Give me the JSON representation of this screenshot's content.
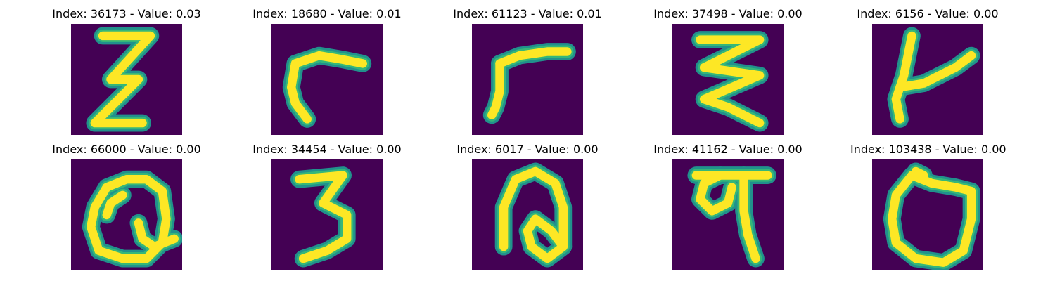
{
  "figure": {
    "background_color": "#440154",
    "foreground_color": "#fde725",
    "colormap": "viridis"
  },
  "panels": [
    {
      "title": "Index: 36173 - Value: 0.03",
      "glyph": "handwritten-three-like-character",
      "strokes": [
        [
          [
            8,
            3
          ],
          [
            20,
            3
          ],
          [
            10,
            14
          ],
          [
            17,
            14
          ],
          [
            6,
            25
          ],
          [
            18,
            25
          ]
        ]
      ]
    },
    {
      "title": "Index: 18680 - Value: 0.01",
      "glyph": "handwritten-c-hook-character",
      "strokes": [
        [
          [
            23,
            10
          ],
          [
            18,
            9
          ],
          [
            12,
            8
          ],
          [
            6,
            10
          ],
          [
            5,
            16
          ],
          [
            6,
            20
          ],
          [
            9,
            24
          ]
        ]
      ]
    },
    {
      "title": "Index: 61123 - Value: 0.01",
      "glyph": "handwritten-r-like-character",
      "strokes": [
        [
          [
            7,
            10
          ],
          [
            12,
            8
          ],
          [
            19,
            7
          ],
          [
            24,
            7
          ]
        ],
        [
          [
            7,
            10
          ],
          [
            7,
            17
          ],
          [
            6,
            21
          ],
          [
            5,
            23
          ]
        ]
      ]
    },
    {
      "title": "Index: 37498 - Value: 0.00",
      "glyph": "handwritten-stacked-zigzag-character",
      "strokes": [
        [
          [
            7,
            4
          ],
          [
            22,
            4
          ],
          [
            8,
            11
          ],
          [
            22,
            13
          ],
          [
            8,
            19
          ],
          [
            14,
            21
          ],
          [
            22,
            25
          ]
        ]
      ]
    },
    {
      "title": "Index: 6156 - Value: 0.00",
      "glyph": "handwritten-k-like-character",
      "strokes": [
        [
          [
            10,
            3
          ],
          [
            8,
            13
          ],
          [
            6,
            19
          ],
          [
            7,
            24
          ]
        ],
        [
          [
            7,
            16
          ],
          [
            13,
            15
          ],
          [
            17,
            13
          ],
          [
            21,
            11
          ],
          [
            25,
            8
          ]
        ]
      ]
    },
    {
      "title": "Index: 66000 - Value: 0.00",
      "glyph": "handwritten-loop-with-cross-character",
      "strokes": [
        [
          [
            14,
            5
          ],
          [
            9,
            7
          ],
          [
            6,
            12
          ],
          [
            5,
            17
          ],
          [
            7,
            23
          ],
          [
            13,
            25
          ],
          [
            19,
            25
          ],
          [
            23,
            21
          ],
          [
            24,
            15
          ],
          [
            23,
            8
          ],
          [
            19,
            5
          ],
          [
            14,
            5
          ]
        ],
        [
          [
            13,
            9
          ],
          [
            10,
            11
          ],
          [
            9,
            14
          ]
        ],
        [
          [
            17,
            16
          ],
          [
            18,
            20
          ],
          [
            21,
            22
          ],
          [
            26,
            20
          ]
        ]
      ]
    },
    {
      "title": "Index: 34454 - Value: 0.00",
      "glyph": "handwritten-three-character",
      "strokes": [
        [
          [
            7,
            5
          ],
          [
            18,
            4
          ],
          [
            13,
            11
          ],
          [
            19,
            14
          ],
          [
            19,
            20
          ],
          [
            14,
            23
          ],
          [
            8,
            25
          ]
        ]
      ]
    },
    {
      "title": "Index: 6017 - Value: 0.00",
      "glyph": "handwritten-arch-loop-character",
      "strokes": [
        [
          [
            8,
            22
          ],
          [
            8,
            12
          ],
          [
            11,
            5
          ],
          [
            16,
            3
          ],
          [
            21,
            6
          ],
          [
            23,
            12
          ],
          [
            23,
            22
          ]
        ],
        [
          [
            23,
            22
          ],
          [
            20,
            18
          ],
          [
            16,
            15
          ],
          [
            14,
            18
          ],
          [
            15,
            22
          ],
          [
            19,
            25
          ],
          [
            23,
            22
          ]
        ]
      ]
    },
    {
      "title": "Index: 41162 - Value: 0.00",
      "glyph": "handwritten-looped-descender-character",
      "strokes": [
        [
          [
            6,
            4
          ],
          [
            24,
            4
          ]
        ],
        [
          [
            12,
            4
          ],
          [
            8,
            6
          ],
          [
            7,
            10
          ],
          [
            10,
            13
          ],
          [
            14,
            11
          ],
          [
            15,
            7
          ]
        ],
        [
          [
            18,
            4
          ],
          [
            18,
            13
          ],
          [
            19,
            19
          ],
          [
            21,
            25
          ]
        ]
      ]
    },
    {
      "title": "Index: 103438 - Value: 0.00",
      "glyph": "handwritten-open-loop-character",
      "strokes": [
        [
          [
            10,
            4
          ],
          [
            6,
            9
          ],
          [
            5,
            15
          ],
          [
            6,
            21
          ],
          [
            11,
            25
          ],
          [
            18,
            26
          ],
          [
            23,
            23
          ],
          [
            25,
            15
          ],
          [
            25,
            8
          ],
          [
            21,
            7
          ],
          [
            15,
            6
          ],
          [
            10,
            4
          ]
        ],
        [
          [
            11,
            3
          ],
          [
            13,
            4
          ]
        ]
      ]
    }
  ]
}
